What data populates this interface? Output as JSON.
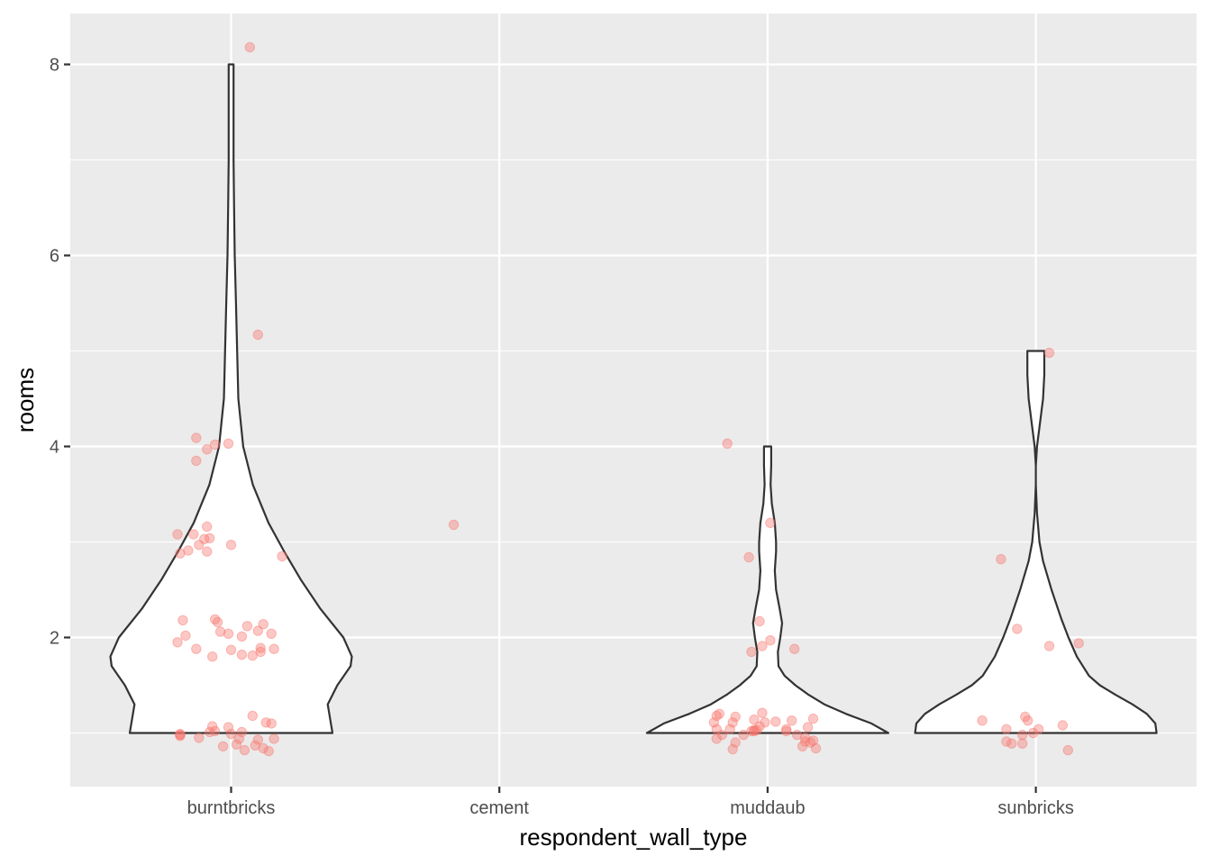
{
  "chart_data": {
    "type": "violin",
    "title": "",
    "xlabel": "respondent_wall_type",
    "ylabel": "rooms",
    "categories": [
      "burntbricks",
      "cement",
      "muddaub",
      "sunbricks"
    ],
    "ylim": [
      0.45,
      8.55
    ],
    "yticks": [
      2,
      4,
      6,
      8
    ],
    "grid": true,
    "legend": "none",
    "colors": {
      "panel": "#ebebeb",
      "grid": "#ffffff",
      "violin_fill": "#ffffff",
      "violin_stroke": "#333333",
      "point": "#f8766d"
    },
    "violins": [
      {
        "category": "burntbricks",
        "range": [
          1,
          8
        ],
        "profile": [
          [
            1.0,
            0.84
          ],
          [
            1.3,
            0.8
          ],
          [
            1.5,
            0.88
          ],
          [
            1.7,
            0.99
          ],
          [
            1.8,
            1.0
          ],
          [
            2.0,
            0.93
          ],
          [
            2.3,
            0.74
          ],
          [
            2.6,
            0.58
          ],
          [
            2.9,
            0.44
          ],
          [
            3.2,
            0.31
          ],
          [
            3.6,
            0.18
          ],
          [
            4.0,
            0.1
          ],
          [
            4.5,
            0.06
          ],
          [
            5.0,
            0.05
          ],
          [
            5.5,
            0.04
          ],
          [
            6.0,
            0.03
          ],
          [
            6.5,
            0.025
          ],
          [
            7.0,
            0.02
          ],
          [
            7.5,
            0.02
          ],
          [
            8.0,
            0.02
          ]
        ]
      },
      {
        "category": "muddaub",
        "range": [
          1,
          4
        ],
        "profile": [
          [
            1.0,
            1.0
          ],
          [
            1.1,
            0.86
          ],
          [
            1.2,
            0.65
          ],
          [
            1.3,
            0.47
          ],
          [
            1.4,
            0.34
          ],
          [
            1.5,
            0.23
          ],
          [
            1.6,
            0.14
          ],
          [
            1.7,
            0.09
          ],
          [
            1.85,
            0.085
          ],
          [
            2.0,
            0.105
          ],
          [
            2.15,
            0.12
          ],
          [
            2.3,
            0.1
          ],
          [
            2.5,
            0.07
          ],
          [
            2.7,
            0.06
          ],
          [
            2.9,
            0.07
          ],
          [
            3.0,
            0.07
          ],
          [
            3.2,
            0.06
          ],
          [
            3.4,
            0.035
          ],
          [
            3.6,
            0.025
          ],
          [
            3.8,
            0.03
          ],
          [
            4.0,
            0.03
          ]
        ]
      },
      {
        "category": "sunbricks",
        "range": [
          1,
          5
        ],
        "profile": [
          [
            1.0,
            1.0
          ],
          [
            1.1,
            0.99
          ],
          [
            1.2,
            0.92
          ],
          [
            1.3,
            0.8
          ],
          [
            1.4,
            0.66
          ],
          [
            1.5,
            0.53
          ],
          [
            1.6,
            0.44
          ],
          [
            1.8,
            0.34
          ],
          [
            2.0,
            0.27
          ],
          [
            2.2,
            0.21
          ],
          [
            2.5,
            0.13
          ],
          [
            2.8,
            0.06
          ],
          [
            3.0,
            0.03
          ],
          [
            3.3,
            0.01
          ],
          [
            3.6,
            0.0
          ],
          [
            3.8,
            0.0
          ],
          [
            4.0,
            0.01
          ],
          [
            4.2,
            0.03
          ],
          [
            4.5,
            0.06
          ],
          [
            4.75,
            0.07
          ],
          [
            5.0,
            0.07
          ]
        ]
      }
    ],
    "points": [
      {
        "category": "burntbricks",
        "rooms": [
          1.0,
          1.0,
          1.0,
          1.0,
          1.0,
          1.0,
          1.0,
          1.0,
          1.0,
          1.0,
          1.0,
          1.0,
          1.0,
          1.0,
          1.0,
          1.0,
          1.0,
          1.0,
          1.0,
          1.0,
          1.0,
          1.0,
          2.0,
          2.0,
          2.0,
          2.0,
          2.0,
          2.0,
          2.0,
          2.0,
          2.0,
          2.0,
          2.0,
          2.0,
          2.0,
          2.0,
          2.0,
          2.0,
          2.0,
          2.0,
          2.0,
          2.0,
          3.0,
          3.0,
          3.0,
          3.0,
          3.0,
          3.0,
          3.0,
          3.0,
          3.0,
          3.0,
          3.0,
          3.0,
          4.0,
          4.0,
          4.0,
          4.0,
          5.0,
          8.0
        ],
        "offsets": [
          -0.19,
          -0.19,
          -0.12,
          -0.07,
          -0.06,
          -0.08,
          -0.01,
          0.0,
          0.04,
          0.09,
          0.1,
          -0.19,
          0.14,
          0.08,
          0.13,
          0.15,
          0.16,
          0.12,
          -0.03,
          0.02,
          0.03,
          0.05,
          -0.2,
          -0.18,
          -0.17,
          -0.13,
          -0.07,
          -0.04,
          -0.05,
          -0.06,
          -0.01,
          0.0,
          0.04,
          0.04,
          0.06,
          0.08,
          0.1,
          0.11,
          0.11,
          0.12,
          0.15,
          0.16,
          -0.2,
          -0.19,
          -0.16,
          -0.14,
          -0.13,
          -0.12,
          -0.1,
          -0.09,
          -0.09,
          -0.08,
          0.0,
          0.19,
          -0.13,
          -0.09,
          -0.06,
          -0.01,
          0.1,
          0.07
        ],
        "values_shown": [
          0.97,
          0.99,
          0.95,
          1.07,
          1.02,
          1.01,
          1.06,
          0.99,
          1.01,
          0.87,
          0.93,
          0.98,
          0.81,
          1.18,
          1.11,
          1.1,
          0.94,
          0.84,
          0.86,
          0.88,
          0.94,
          0.82,
          1.95,
          2.18,
          2.02,
          1.88,
          1.8,
          2.06,
          2.16,
          2.19,
          2.04,
          1.87,
          2.01,
          1.82,
          2.12,
          1.81,
          2.07,
          1.89,
          1.85,
          2.14,
          2.04,
          1.88,
          3.08,
          2.88,
          2.91,
          3.08,
          3.85,
          2.97,
          3.03,
          2.9,
          3.16,
          3.04,
          2.97,
          2.85,
          4.09,
          3.97,
          4.02,
          4.03,
          5.17,
          8.18
        ]
      },
      {
        "category": "cement",
        "rooms": [
          3.0
        ],
        "offsets": [
          -0.17
        ],
        "values_shown": [
          3.18
        ]
      },
      {
        "category": "muddaub",
        "rooms": [
          1.0,
          1.0,
          1.0,
          1.0,
          1.0,
          1.0,
          1.0,
          1.0,
          1.0,
          1.0,
          1.0,
          1.0,
          1.0,
          1.0,
          1.0,
          1.0,
          1.0,
          1.0,
          1.0,
          1.0,
          1.0,
          1.0,
          1.0,
          1.0,
          1.0,
          1.0,
          1.0,
          1.0,
          1.0,
          1.0,
          1.0,
          1.0,
          1.0,
          2.0,
          2.0,
          2.0,
          2.0,
          2.0,
          3.0,
          3.0,
          4.0
        ],
        "offsets": [
          -0.2,
          -0.19,
          -0.19,
          -0.19,
          -0.18,
          -0.17,
          -0.14,
          -0.13,
          -0.13,
          -0.12,
          -0.12,
          -0.09,
          -0.06,
          -0.05,
          -0.05,
          -0.04,
          -0.05,
          -0.03,
          -0.02,
          -0.01,
          0.03,
          0.07,
          0.07,
          0.09,
          0.11,
          0.13,
          0.14,
          0.14,
          0.15,
          0.16,
          0.17,
          0.17,
          0.18,
          -0.06,
          -0.03,
          -0.02,
          0.01,
          0.1,
          -0.07,
          0.01,
          -0.15
        ],
        "values_shown": [
          1.11,
          0.94,
          1.04,
          1.18,
          1.2,
          0.98,
          1.04,
          0.83,
          1.11,
          1.17,
          0.9,
          0.98,
          1.02,
          1.14,
          1.03,
          1.03,
          1.02,
          1.07,
          1.21,
          1.11,
          1.12,
          1.02,
          1.04,
          1.13,
          0.98,
          0.86,
          0.91,
          0.95,
          1.06,
          0.9,
          1.15,
          0.92,
          0.84,
          1.85,
          2.17,
          1.91,
          1.97,
          1.88,
          2.84,
          3.2,
          4.03
        ],
        "note": ""
      },
      {
        "category": "sunbricks",
        "rooms": [
          1.0,
          1.0,
          1.0,
          1.0,
          1.0,
          1.0,
          1.0,
          1.0,
          1.0,
          1.0,
          1.0,
          1.0,
          2.0,
          2.0,
          2.0,
          3.0,
          5.0
        ],
        "offsets": [
          -0.2,
          -0.11,
          -0.11,
          -0.09,
          -0.05,
          -0.05,
          -0.04,
          -0.03,
          -0.01,
          0.01,
          0.1,
          0.12,
          -0.07,
          0.05,
          0.16,
          -0.13,
          0.05
        ],
        "values_shown": [
          1.13,
          1.04,
          0.91,
          0.89,
          0.89,
          0.98,
          1.17,
          1.13,
          1.0,
          1.04,
          1.08,
          0.82,
          2.09,
          1.91,
          1.94,
          2.82,
          4.98
        ]
      }
    ]
  }
}
